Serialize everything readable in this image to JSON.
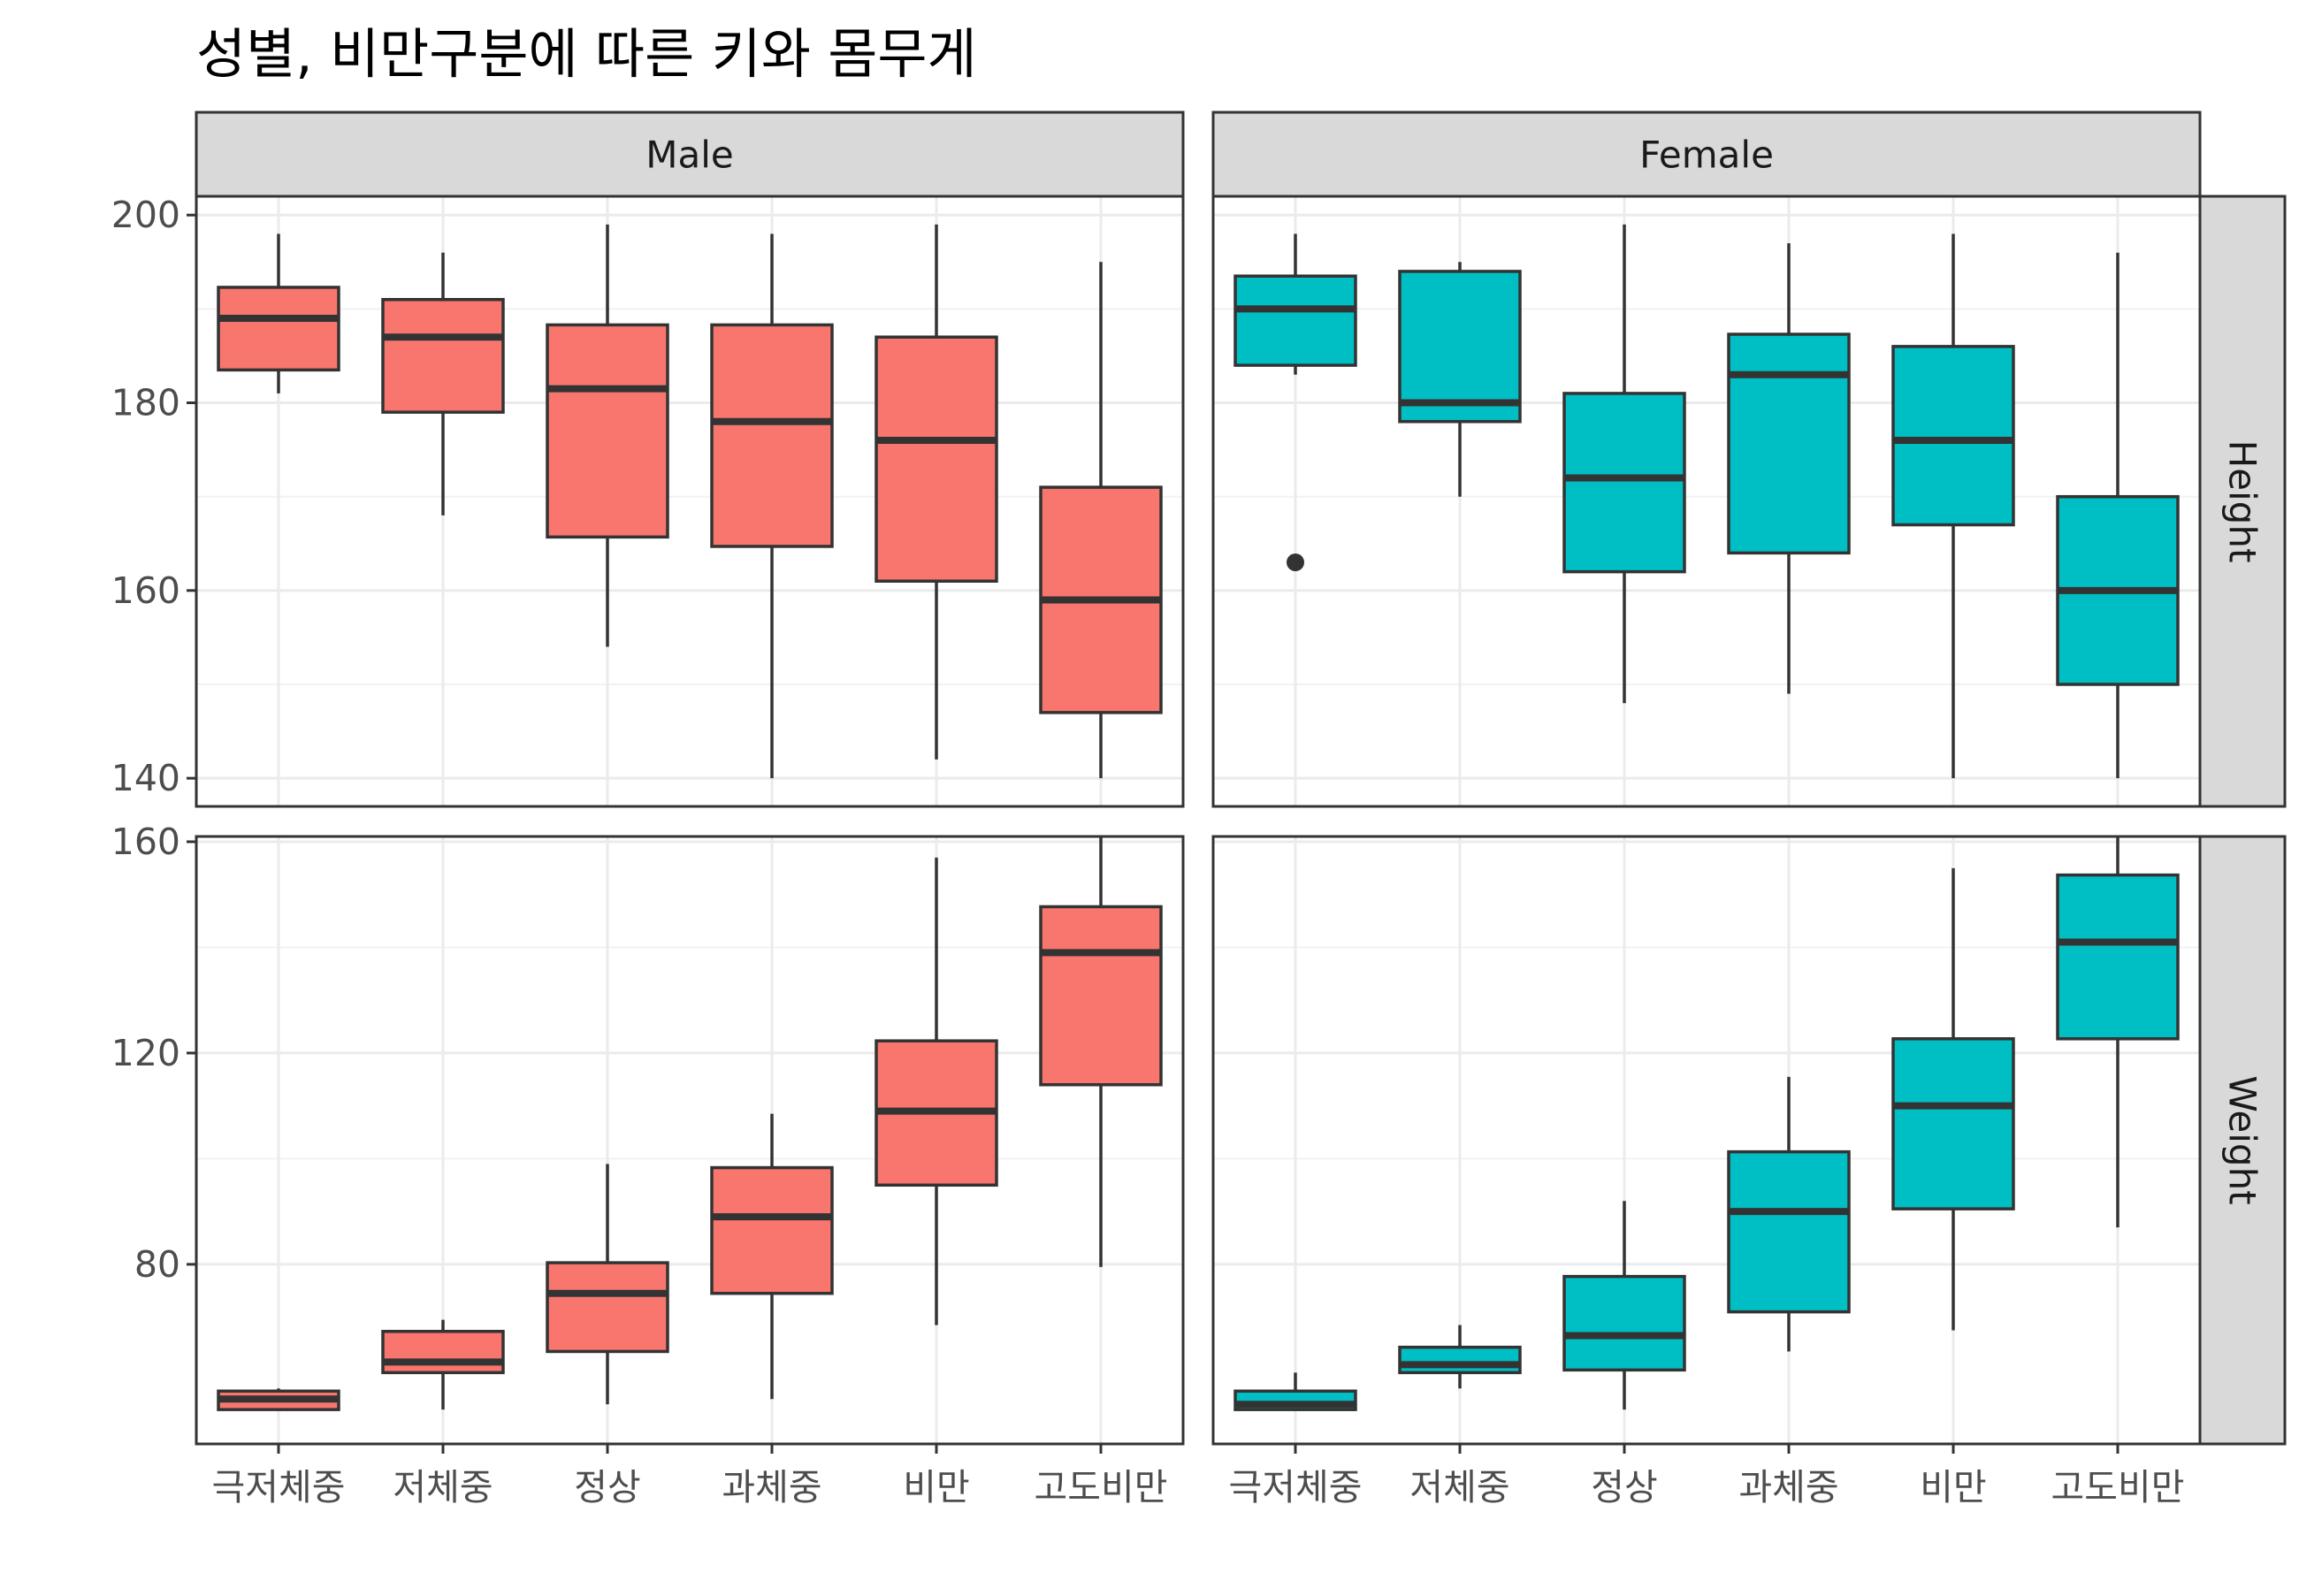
{
  "chart_data": {
    "type": "boxplot",
    "title": "성별, 비만구분에 따른 키와 몸무게",
    "xlabel": "",
    "ylabel": "",
    "grid": true,
    "legend": "none",
    "categories": [
      "극저체중",
      "저체중",
      "정상",
      "과체중",
      "비만",
      "고도비만"
    ],
    "facet_cols": [
      "Male",
      "Female"
    ],
    "facet_rows": [
      "Height",
      "Weight"
    ],
    "colors": {
      "Male": "#F8766D",
      "Female": "#00BFC4"
    },
    "rows": [
      {
        "name": "Height",
        "ylim": [
          137,
          202
        ],
        "yticks": [
          140,
          160,
          180,
          200
        ]
      },
      {
        "name": "Weight",
        "ylim": [
          46,
          161
        ],
        "yticks": [
          80,
          120,
          160
        ]
      }
    ],
    "panels": [
      {
        "col": "Male",
        "row": "Height",
        "boxes": [
          {
            "category": "극저체중",
            "min": 181,
            "q1": 183.5,
            "median": 189,
            "q3": 192.3,
            "max": 198,
            "outliers": []
          },
          {
            "category": "저체중",
            "min": 168,
            "q1": 179,
            "median": 187,
            "q3": 191,
            "max": 196,
            "outliers": []
          },
          {
            "category": "정상",
            "min": 154,
            "q1": 165.7,
            "median": 181.5,
            "q3": 188.3,
            "max": 199,
            "outliers": []
          },
          {
            "category": "과체중",
            "min": 140,
            "q1": 164.7,
            "median": 178,
            "q3": 188.3,
            "max": 198,
            "outliers": []
          },
          {
            "category": "비만",
            "min": 142,
            "q1": 161,
            "median": 176,
            "q3": 187,
            "max": 199,
            "outliers": []
          },
          {
            "category": "고도비만",
            "min": 140,
            "q1": 147,
            "median": 159,
            "q3": 171,
            "max": 195,
            "outliers": []
          }
        ]
      },
      {
        "col": "Female",
        "row": "Height",
        "boxes": [
          {
            "category": "극저체중",
            "min": 183,
            "q1": 184,
            "median": 190,
            "q3": 193.5,
            "max": 198,
            "outliers": [
              163
            ]
          },
          {
            "category": "저체중",
            "min": 170,
            "q1": 178,
            "median": 180,
            "q3": 194,
            "max": 195,
            "outliers": []
          },
          {
            "category": "정상",
            "min": 148,
            "q1": 162,
            "median": 172,
            "q3": 181,
            "max": 199,
            "outliers": []
          },
          {
            "category": "과체중",
            "min": 149,
            "q1": 164,
            "median": 183,
            "q3": 187.3,
            "max": 197,
            "outliers": []
          },
          {
            "category": "비만",
            "min": 140,
            "q1": 167,
            "median": 176,
            "q3": 186,
            "max": 198,
            "outliers": []
          },
          {
            "category": "고도비만",
            "min": 140,
            "q1": 150,
            "median": 160,
            "q3": 170,
            "max": 196,
            "outliers": []
          }
        ]
      },
      {
        "col": "Male",
        "row": "Weight",
        "boxes": [
          {
            "category": "극저체중",
            "min": 52.5,
            "q1": 52.5,
            "median": 54.5,
            "q3": 56,
            "max": 56.5,
            "outliers": []
          },
          {
            "category": "저체중",
            "min": 52.5,
            "q1": 59.5,
            "median": 61.5,
            "q3": 67.3,
            "max": 69.5,
            "outliers": []
          },
          {
            "category": "정상",
            "min": 53.5,
            "q1": 63.5,
            "median": 74.5,
            "q3": 80.3,
            "max": 99,
            "outliers": []
          },
          {
            "category": "과체중",
            "min": 54.5,
            "q1": 74.5,
            "median": 89,
            "q3": 98.3,
            "max": 108.5,
            "outliers": []
          },
          {
            "category": "비만",
            "min": 68.5,
            "q1": 95,
            "median": 109,
            "q3": 122.3,
            "max": 157,
            "outliers": []
          },
          {
            "category": "고도비만",
            "min": 79.5,
            "q1": 114,
            "median": 139,
            "q3": 147.7,
            "max": 161,
            "outliers": []
          }
        ]
      },
      {
        "col": "Female",
        "row": "Weight",
        "boxes": [
          {
            "category": "극저체중",
            "min": 52.5,
            "q1": 52.5,
            "median": 53.5,
            "q3": 56,
            "max": 59.5,
            "outliers": []
          },
          {
            "category": "저체중",
            "min": 56.5,
            "q1": 59.5,
            "median": 61,
            "q3": 64.3,
            "max": 68.5,
            "outliers": []
          },
          {
            "category": "정상",
            "min": 52.5,
            "q1": 60,
            "median": 66.5,
            "q3": 77.7,
            "max": 92,
            "outliers": []
          },
          {
            "category": "과체중",
            "min": 63.5,
            "q1": 71,
            "median": 90,
            "q3": 101.3,
            "max": 115.5,
            "outliers": []
          },
          {
            "category": "비만",
            "min": 67.5,
            "q1": 90.5,
            "median": 110,
            "q3": 122.7,
            "max": 155,
            "outliers": []
          },
          {
            "category": "고도비만",
            "min": 87,
            "q1": 122.7,
            "median": 141,
            "q3": 153.7,
            "max": 161,
            "outliers": []
          }
        ]
      }
    ]
  }
}
